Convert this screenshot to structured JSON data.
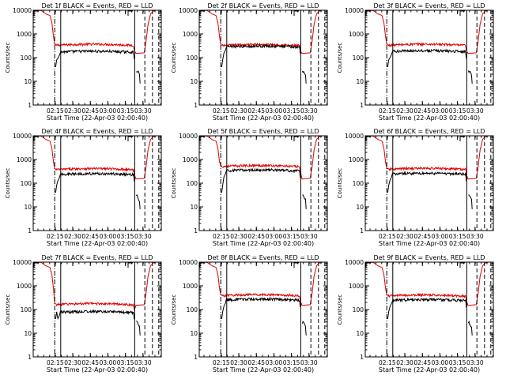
{
  "figure": {
    "panels": [
      {
        "title": "Det 1f BLACK = Events, RED = LLD"
      },
      {
        "title": "Det 2f BLACK = Events, RED = LLD"
      },
      {
        "title": "Det 3f BLACK = Events, RED = LLD"
      },
      {
        "title": "Det 4f BLACK = Events, RED = LLD"
      },
      {
        "title": "Det 5f BLACK = Events, RED = LLD"
      },
      {
        "title": "Det 6f BLACK = Events, RED = LLD"
      },
      {
        "title": "Det 7f BLACK = Events, RED = LLD"
      },
      {
        "title": "Det 8f BLACK = Events, RED = LLD"
      },
      {
        "title": "Det 9f BLACK = Events, RED = LLD"
      }
    ]
  },
  "chart_data": [
    {
      "type": "line",
      "title": "Det 1f BLACK = Events, RED = LLD",
      "xlabel": "Start Time (22-Apr-03 02:00:40)",
      "ylabel": "Counts/sec",
      "x_ticks": [
        "02:15",
        "02:30",
        "02:45",
        "03:00",
        "03:15",
        "03:30"
      ],
      "y_ticks": [
        "1",
        "10",
        "100",
        "1000",
        "10000"
      ],
      "xlim": [
        2.5,
        43
      ],
      "ylim": [
        1,
        10000
      ],
      "yscale": "log",
      "series": [
        {
          "name": "Events",
          "color": "#000000",
          "level": 170
        },
        {
          "name": "LLD",
          "color": "#e00000",
          "level": 330
        }
      ]
    },
    {
      "type": "line",
      "title": "Det 2f BLACK = Events, RED = LLD",
      "xlabel": "Start Time (22-Apr-03 02:00:40)",
      "ylabel": "Counts/sec",
      "x_ticks": [
        "02:15",
        "02:30",
        "02:45",
        "03:00",
        "03:15",
        "03:30"
      ],
      "y_ticks": [
        "1",
        "10",
        "100",
        "1000",
        "10000"
      ],
      "xlim": [
        2.5,
        43
      ],
      "ylim": [
        1,
        10000
      ],
      "yscale": "log",
      "series": [
        {
          "name": "Events",
          "color": "#000000",
          "level": 280
        },
        {
          "name": "LLD",
          "color": "#e00000",
          "level": 320
        }
      ]
    },
    {
      "type": "line",
      "title": "Det 3f BLACK = Events, RED = LLD",
      "xlabel": "Start Time (22-Apr-03 02:00:40)",
      "ylabel": "Counts/sec",
      "x_ticks": [
        "02:15",
        "02:30",
        "02:45",
        "03:00",
        "03:15",
        "03:30"
      ],
      "y_ticks": [
        "1",
        "10",
        "100",
        "1000",
        "10000"
      ],
      "xlim": [
        2.5,
        43
      ],
      "ylim": [
        1,
        10000
      ],
      "yscale": "log",
      "series": [
        {
          "name": "Events",
          "color": "#000000",
          "level": 180
        },
        {
          "name": "LLD",
          "color": "#e00000",
          "level": 330
        }
      ]
    },
    {
      "type": "line",
      "title": "Det 4f BLACK = Events, RED = LLD",
      "xlabel": "Start Time (22-Apr-03 02:00:40)",
      "ylabel": "Counts/sec",
      "x_ticks": [
        "02:15",
        "02:30",
        "02:45",
        "03:00",
        "03:15",
        "03:30"
      ],
      "y_ticks": [
        "1",
        "10",
        "100",
        "1000",
        "10000"
      ],
      "xlim": [
        2.5,
        43
      ],
      "ylim": [
        1,
        10000
      ],
      "yscale": "log",
      "series": [
        {
          "name": "Events",
          "color": "#000000",
          "level": 230
        },
        {
          "name": "LLD",
          "color": "#e00000",
          "level": 370
        }
      ]
    },
    {
      "type": "line",
      "title": "Det 5f BLACK = Events, RED = LLD",
      "xlabel": "Start Time (22-Apr-03 02:00:40)",
      "ylabel": "Counts/sec",
      "x_ticks": [
        "02:15",
        "02:30",
        "02:45",
        "03:00",
        "03:15",
        "03:30"
      ],
      "y_ticks": [
        "1",
        "10",
        "100",
        "1000",
        "10000"
      ],
      "xlim": [
        2.5,
        43
      ],
      "ylim": [
        1,
        10000
      ],
      "yscale": "log",
      "series": [
        {
          "name": "Events",
          "color": "#000000",
          "level": 330
        },
        {
          "name": "LLD",
          "color": "#e00000",
          "level": 500
        }
      ]
    },
    {
      "type": "line",
      "title": "Det 6f BLACK = Events, RED = LLD",
      "xlabel": "Start Time (22-Apr-03 02:00:40)",
      "ylabel": "Counts/sec",
      "x_ticks": [
        "02:15",
        "02:30",
        "02:45",
        "03:00",
        "03:15",
        "03:30"
      ],
      "y_ticks": [
        "1",
        "10",
        "100",
        "1000",
        "10000"
      ],
      "xlim": [
        2.5,
        43
      ],
      "ylim": [
        1,
        10000
      ],
      "yscale": "log",
      "series": [
        {
          "name": "Events",
          "color": "#000000",
          "level": 240
        },
        {
          "name": "LLD",
          "color": "#e00000",
          "level": 380
        }
      ]
    },
    {
      "type": "line",
      "title": "Det 7f BLACK = Events, RED = LLD",
      "xlabel": "Start Time (22-Apr-03 02:00:40)",
      "ylabel": "Counts/sec",
      "x_ticks": [
        "02:15",
        "02:30",
        "02:45",
        "03:00",
        "03:15",
        "03:30"
      ],
      "y_ticks": [
        "1",
        "10",
        "100",
        "1000",
        "10000"
      ],
      "xlim": [
        2.5,
        43
      ],
      "ylim": [
        1,
        10000
      ],
      "yscale": "log",
      "series": [
        {
          "name": "Events",
          "color": "#000000",
          "level": 75
        },
        {
          "name": "LLD",
          "color": "#e00000",
          "level": 160
        }
      ]
    },
    {
      "type": "line",
      "title": "Det 8f BLACK = Events, RED = LLD",
      "xlabel": "Start Time (22-Apr-03 02:00:40)",
      "ylabel": "Counts/sec",
      "x_ticks": [
        "02:15",
        "02:30",
        "02:45",
        "03:00",
        "03:15",
        "03:30"
      ],
      "y_ticks": [
        "1",
        "10",
        "100",
        "1000",
        "10000"
      ],
      "xlim": [
        2.5,
        43
      ],
      "ylim": [
        1,
        10000
      ],
      "yscale": "log",
      "series": [
        {
          "name": "Events",
          "color": "#000000",
          "level": 250
        },
        {
          "name": "LLD",
          "color": "#e00000",
          "level": 380
        }
      ]
    },
    {
      "type": "line",
      "title": "Det 9f BLACK = Events, RED = LLD",
      "xlabel": "Start Time (22-Apr-03 02:00:40)",
      "ylabel": "Counts/sec",
      "x_ticks": [
        "02:15",
        "02:30",
        "02:45",
        "03:00",
        "03:15",
        "03:30"
      ],
      "y_ticks": [
        "1",
        "10",
        "100",
        "1000",
        "10000"
      ],
      "xlim": [
        2.5,
        43
      ],
      "ylim": [
        1,
        10000
      ],
      "yscale": "log",
      "series": [
        {
          "name": "Events",
          "color": "#000000",
          "level": 240
        },
        {
          "name": "LLD",
          "color": "#e00000",
          "level": 370
        }
      ]
    }
  ]
}
